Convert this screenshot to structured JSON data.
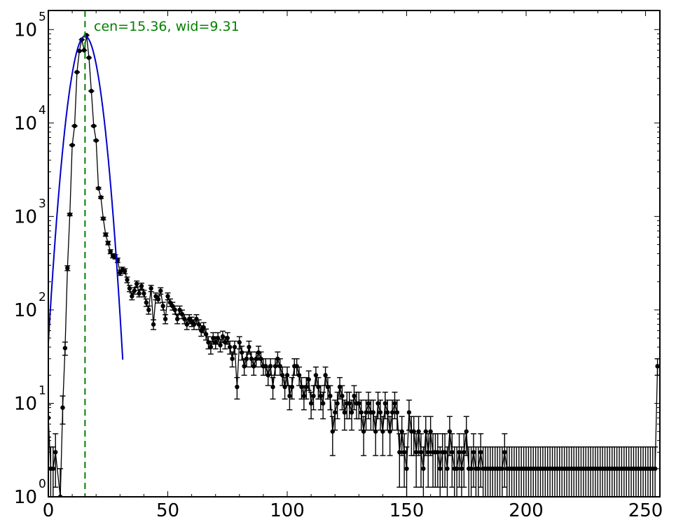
{
  "chart_data": {
    "type": "scatter",
    "title": "",
    "xlabel": "",
    "ylabel": "",
    "x_scale": "linear",
    "y_scale": "log",
    "xlim": [
      0,
      256
    ],
    "ylim": [
      1,
      160000
    ],
    "grid": false,
    "x_ticks": [
      0,
      50,
      100,
      150,
      200,
      250
    ],
    "x_tick_labels": [
      "0",
      "50",
      "100",
      "150",
      "200",
      "250"
    ],
    "y_ticks": [
      1,
      10,
      100,
      1000,
      10000,
      100000
    ],
    "y_tick_labels": [
      {
        "base": "10",
        "exp": "0"
      },
      {
        "base": "10",
        "exp": "1"
      },
      {
        "base": "10",
        "exp": "2"
      },
      {
        "base": "10",
        "exp": "3"
      },
      {
        "base": "10",
        "exp": "4"
      },
      {
        "base": "10",
        "exp": "5"
      }
    ],
    "annotation": {
      "text": "cen=15.36, wid=9.31",
      "color": "#008000"
    },
    "vline": {
      "x": 15.36,
      "color": "#008000",
      "style": "dashed"
    },
    "fit": {
      "type": "gaussian",
      "center": 15.36,
      "width": 9.31,
      "amplitude": 85000,
      "color": "#0000cc"
    },
    "series": [
      {
        "marker_color": "#000000",
        "points": [
          [
            0,
            7
          ],
          [
            1,
            2
          ],
          [
            2,
            2
          ],
          [
            3,
            3
          ],
          [
            5,
            1
          ],
          [
            6,
            9
          ],
          [
            7,
            39
          ],
          [
            8,
            280
          ],
          [
            9,
            1050
          ],
          [
            10,
            5800
          ],
          [
            11,
            9300
          ],
          [
            12,
            35000
          ],
          [
            13,
            59000
          ],
          [
            14,
            78000
          ],
          [
            15,
            60000
          ],
          [
            16,
            87000
          ],
          [
            17,
            50000
          ],
          [
            18,
            22000
          ],
          [
            19,
            9300
          ],
          [
            20,
            6500
          ],
          [
            21,
            2000
          ],
          [
            22,
            1600
          ],
          [
            23,
            950
          ],
          [
            24,
            640
          ],
          [
            25,
            520
          ],
          [
            26,
            420
          ],
          [
            27,
            380
          ],
          [
            28,
            370
          ],
          [
            29,
            340
          ],
          [
            30,
            250
          ],
          [
            31,
            270
          ],
          [
            32,
            260
          ],
          [
            33,
            210
          ],
          [
            34,
            170
          ],
          [
            35,
            140
          ],
          [
            36,
            160
          ],
          [
            37,
            190
          ],
          [
            38,
            150
          ],
          [
            39,
            180
          ],
          [
            40,
            150
          ],
          [
            41,
            120
          ],
          [
            42,
            100
          ],
          [
            43,
            170
          ],
          [
            44,
            70
          ],
          [
            45,
            140
          ],
          [
            46,
            130
          ],
          [
            47,
            160
          ],
          [
            48,
            110
          ],
          [
            49,
            80
          ],
          [
            50,
            140
          ],
          [
            51,
            120
          ],
          [
            52,
            110
          ],
          [
            53,
            100
          ],
          [
            54,
            80
          ],
          [
            55,
            100
          ],
          [
            56,
            90
          ],
          [
            57,
            80
          ],
          [
            58,
            70
          ],
          [
            59,
            80
          ],
          [
            60,
            75
          ],
          [
            61,
            70
          ],
          [
            62,
            80
          ],
          [
            63,
            70
          ],
          [
            64,
            60
          ],
          [
            65,
            65
          ],
          [
            66,
            55
          ],
          [
            67,
            45
          ],
          [
            68,
            40
          ],
          [
            69,
            50
          ],
          [
            70,
            45
          ],
          [
            71,
            50
          ],
          [
            72,
            42
          ],
          [
            73,
            52
          ],
          [
            74,
            45
          ],
          [
            75,
            50
          ],
          [
            76,
            40
          ],
          [
            77,
            30
          ],
          [
            78,
            40
          ],
          [
            79,
            15
          ],
          [
            80,
            45
          ],
          [
            81,
            35
          ],
          [
            82,
            25
          ],
          [
            83,
            30
          ],
          [
            84,
            40
          ],
          [
            85,
            30
          ],
          [
            86,
            25
          ],
          [
            87,
            30
          ],
          [
            88,
            35
          ],
          [
            89,
            30
          ],
          [
            90,
            25
          ],
          [
            91,
            25
          ],
          [
            92,
            20
          ],
          [
            93,
            25
          ],
          [
            94,
            15
          ],
          [
            95,
            25
          ],
          [
            96,
            30
          ],
          [
            97,
            25
          ],
          [
            98,
            20
          ],
          [
            99,
            15
          ],
          [
            100,
            20
          ],
          [
            101,
            12
          ],
          [
            102,
            15
          ],
          [
            103,
            25
          ],
          [
            104,
            25
          ],
          [
            105,
            20
          ],
          [
            106,
            15
          ],
          [
            107,
            12
          ],
          [
            108,
            15
          ],
          [
            109,
            18
          ],
          [
            110,
            10
          ],
          [
            111,
            12
          ],
          [
            112,
            20
          ],
          [
            113,
            15
          ],
          [
            114,
            12
          ],
          [
            115,
            10
          ],
          [
            116,
            20
          ],
          [
            117,
            15
          ],
          [
            118,
            12
          ],
          [
            119,
            5
          ],
          [
            120,
            8
          ],
          [
            121,
            10
          ],
          [
            122,
            15
          ],
          [
            123,
            12
          ],
          [
            124,
            8
          ],
          [
            125,
            10
          ],
          [
            126,
            10
          ],
          [
            127,
            8
          ],
          [
            128,
            12
          ],
          [
            129,
            10
          ],
          [
            130,
            10
          ],
          [
            131,
            8
          ],
          [
            132,
            5
          ],
          [
            133,
            8
          ],
          [
            134,
            10
          ],
          [
            135,
            8
          ],
          [
            136,
            8
          ],
          [
            137,
            5
          ],
          [
            138,
            10
          ],
          [
            139,
            8
          ],
          [
            140,
            5
          ],
          [
            141,
            10
          ],
          [
            142,
            8
          ],
          [
            143,
            5
          ],
          [
            144,
            8
          ],
          [
            145,
            10
          ],
          [
            146,
            8
          ],
          [
            147,
            3
          ],
          [
            148,
            5
          ],
          [
            149,
            3
          ],
          [
            150,
            2
          ],
          [
            151,
            8
          ],
          [
            152,
            5
          ],
          [
            153,
            5
          ],
          [
            154,
            3
          ],
          [
            155,
            5
          ],
          [
            156,
            3
          ],
          [
            157,
            2
          ],
          [
            158,
            5
          ],
          [
            159,
            3
          ],
          [
            160,
            5
          ],
          [
            161,
            3
          ],
          [
            162,
            3
          ],
          [
            163,
            3
          ],
          [
            164,
            2
          ],
          [
            165,
            3
          ],
          [
            166,
            3
          ],
          [
            167,
            2
          ],
          [
            168,
            5
          ],
          [
            169,
            3
          ],
          [
            170,
            2
          ],
          [
            171,
            2
          ],
          [
            172,
            3
          ],
          [
            173,
            2
          ],
          [
            174,
            3
          ],
          [
            175,
            5
          ],
          [
            176,
            2
          ],
          [
            177,
            2
          ],
          [
            178,
            3
          ],
          [
            179,
            2
          ],
          [
            180,
            2
          ],
          [
            181,
            3
          ],
          [
            182,
            2
          ],
          [
            183,
            2
          ],
          [
            184,
            2
          ],
          [
            185,
            2
          ],
          [
            186,
            2
          ],
          [
            187,
            2
          ],
          [
            188,
            2
          ],
          [
            189,
            2
          ],
          [
            190,
            2
          ],
          [
            191,
            3
          ],
          [
            192,
            2
          ],
          [
            193,
            2
          ],
          [
            194,
            2
          ],
          [
            195,
            2
          ],
          [
            196,
            2
          ],
          [
            197,
            2
          ],
          [
            198,
            2
          ],
          [
            199,
            2
          ],
          [
            200,
            2
          ],
          [
            201,
            2
          ],
          [
            202,
            2
          ],
          [
            203,
            2
          ],
          [
            204,
            2
          ],
          [
            205,
            2
          ],
          [
            206,
            2
          ],
          [
            207,
            2
          ],
          [
            208,
            2
          ],
          [
            209,
            2
          ],
          [
            210,
            2
          ],
          [
            211,
            2
          ],
          [
            212,
            2
          ],
          [
            213,
            2
          ],
          [
            214,
            2
          ],
          [
            215,
            2
          ],
          [
            216,
            2
          ],
          [
            217,
            2
          ],
          [
            218,
            2
          ],
          [
            219,
            2
          ],
          [
            220,
            2
          ],
          [
            221,
            2
          ],
          [
            222,
            2
          ],
          [
            223,
            2
          ],
          [
            224,
            2
          ],
          [
            225,
            2
          ],
          [
            226,
            2
          ],
          [
            227,
            2
          ],
          [
            228,
            2
          ],
          [
            229,
            2
          ],
          [
            230,
            2
          ],
          [
            231,
            2
          ],
          [
            232,
            2
          ],
          [
            233,
            2
          ],
          [
            234,
            2
          ],
          [
            235,
            2
          ],
          [
            236,
            2
          ],
          [
            237,
            2
          ],
          [
            238,
            2
          ],
          [
            239,
            2
          ],
          [
            240,
            2
          ],
          [
            241,
            2
          ],
          [
            242,
            2
          ],
          [
            243,
            2
          ],
          [
            244,
            2
          ],
          [
            245,
            2
          ],
          [
            246,
            2
          ],
          [
            247,
            2
          ],
          [
            248,
            2
          ],
          [
            249,
            2
          ],
          [
            250,
            2
          ],
          [
            251,
            2
          ],
          [
            252,
            2
          ],
          [
            253,
            2
          ],
          [
            254,
            2
          ],
          [
            255,
            25
          ]
        ]
      }
    ]
  }
}
